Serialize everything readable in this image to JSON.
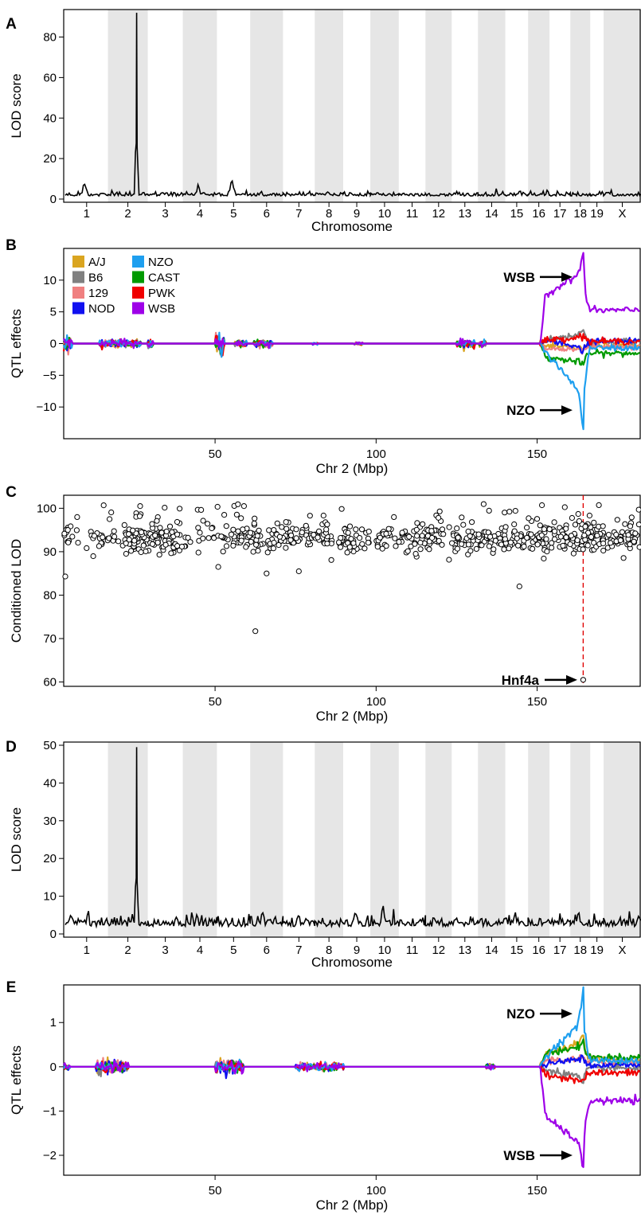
{
  "chart_data": [
    {
      "panel": "A",
      "type": "line",
      "xlabel": "Chromosome",
      "ylabel": "LOD score",
      "ylim": [
        0,
        92
      ],
      "yticks": [
        0,
        20,
        40,
        60,
        80
      ],
      "shaded_alternating_chromosomes": true,
      "chromosomes": [
        "1",
        "2",
        "3",
        "4",
        "5",
        "6",
        "7",
        "8",
        "9",
        "10",
        "11",
        "12",
        "13",
        "14",
        "15",
        "16",
        "17",
        "18",
        "19",
        "X"
      ],
      "baseline_lod": 1.5,
      "peaks": [
        {
          "chromosome": "2",
          "lod": 92
        },
        {
          "chromosome": "1",
          "lod": 7
        },
        {
          "chromosome": "5",
          "lod": 8
        },
        {
          "chromosome": "4",
          "lod": 5
        }
      ]
    },
    {
      "panel": "B",
      "type": "line",
      "xlabel": "Chr 2 (Mbp)",
      "ylabel": "QTL effects",
      "xlim": [
        3,
        182
      ],
      "xticks": [
        50,
        100,
        150
      ],
      "ylim": [
        -15,
        15
      ],
      "yticks": [
        -10,
        -5,
        0,
        5,
        10
      ],
      "legend_position": "top-left",
      "series": [
        {
          "name": "A/J",
          "color": "#DAA520"
        },
        {
          "name": "B6",
          "color": "#808080"
        },
        {
          "name": "129",
          "color": "#F08080"
        },
        {
          "name": "NOD",
          "color": "#1010F0"
        },
        {
          "name": "NZO",
          "color": "#1E9FEF"
        },
        {
          "name": "CAST",
          "color": "#009A00"
        },
        {
          "name": "PWK",
          "color": "#F00000"
        },
        {
          "name": "WSB",
          "color": "#9E00E8"
        }
      ],
      "peak_position_mbp": 164.5,
      "peak_values": {
        "WSB": 14.5,
        "NZO": -14.2
      },
      "annotations": [
        {
          "label": "WSB",
          "x": 150,
          "y": 10.5
        },
        {
          "label": "NZO",
          "x": 150,
          "y": -10.5
        }
      ]
    },
    {
      "panel": "C",
      "type": "scatter",
      "xlabel": "Chr 2 (Mbp)",
      "ylabel": "Conditioned LOD",
      "xlim": [
        3,
        182
      ],
      "xticks": [
        50,
        100,
        150
      ],
      "ylim": [
        59,
        103
      ],
      "yticks": [
        60,
        70,
        80,
        90,
        100
      ],
      "point_cloud_center_lod": 93,
      "outliers": [
        {
          "x": 3.5,
          "y": 84.3
        },
        {
          "x": 51,
          "y": 86.5
        },
        {
          "x": 62.5,
          "y": 71.7
        },
        {
          "x": 66,
          "y": 85
        },
        {
          "x": 76,
          "y": 85.5
        },
        {
          "x": 144.5,
          "y": 82
        },
        {
          "x": 164.3,
          "y": 60.5
        }
      ],
      "vline_x": 164.3,
      "vline_color": "#E00000",
      "annotations": [
        {
          "label": "Hnf4a",
          "x": 164.3,
          "y": 60.5
        }
      ]
    },
    {
      "panel": "D",
      "type": "line",
      "xlabel": "Chromosome",
      "ylabel": "LOD score",
      "ylim": [
        0,
        50
      ],
      "yticks": [
        0,
        10,
        20,
        30,
        40,
        50
      ],
      "shaded_alternating_chromosomes": true,
      "chromosomes": [
        "1",
        "2",
        "3",
        "4",
        "5",
        "6",
        "7",
        "8",
        "9",
        "10",
        "11",
        "12",
        "13",
        "14",
        "15",
        "16",
        "17",
        "18",
        "19",
        "X"
      ],
      "baseline_lod": 2,
      "peaks": [
        {
          "chromosome": "2",
          "lod": 49.5
        },
        {
          "chromosome": "10",
          "lod": 6
        },
        {
          "chromosome": "9",
          "lod": 5.5
        }
      ]
    },
    {
      "panel": "E",
      "type": "line",
      "xlabel": "Chr 2 (Mbp)",
      "ylabel": "QTL effects",
      "xlim": [
        3,
        182
      ],
      "xticks": [
        50,
        100,
        150
      ],
      "ylim": [
        -2.45,
        1.85
      ],
      "yticks": [
        -2,
        -1,
        0,
        1
      ],
      "series": [
        {
          "name": "A/J",
          "color": "#DAA520"
        },
        {
          "name": "B6",
          "color": "#808080"
        },
        {
          "name": "129",
          "color": "#F08080"
        },
        {
          "name": "NOD",
          "color": "#1010F0"
        },
        {
          "name": "NZO",
          "color": "#1E9FEF"
        },
        {
          "name": "CAST",
          "color": "#009A00"
        },
        {
          "name": "PWK",
          "color": "#F00000"
        },
        {
          "name": "WSB",
          "color": "#9E00E8"
        }
      ],
      "peak_position_mbp": 164.5,
      "peak_values": {
        "NZO": 1.75,
        "WSB": -2.35
      },
      "annotations": [
        {
          "label": "NZO",
          "x": 150,
          "y": 1.2
        },
        {
          "label": "WSB",
          "x": 150,
          "y": -2.0
        }
      ]
    }
  ]
}
